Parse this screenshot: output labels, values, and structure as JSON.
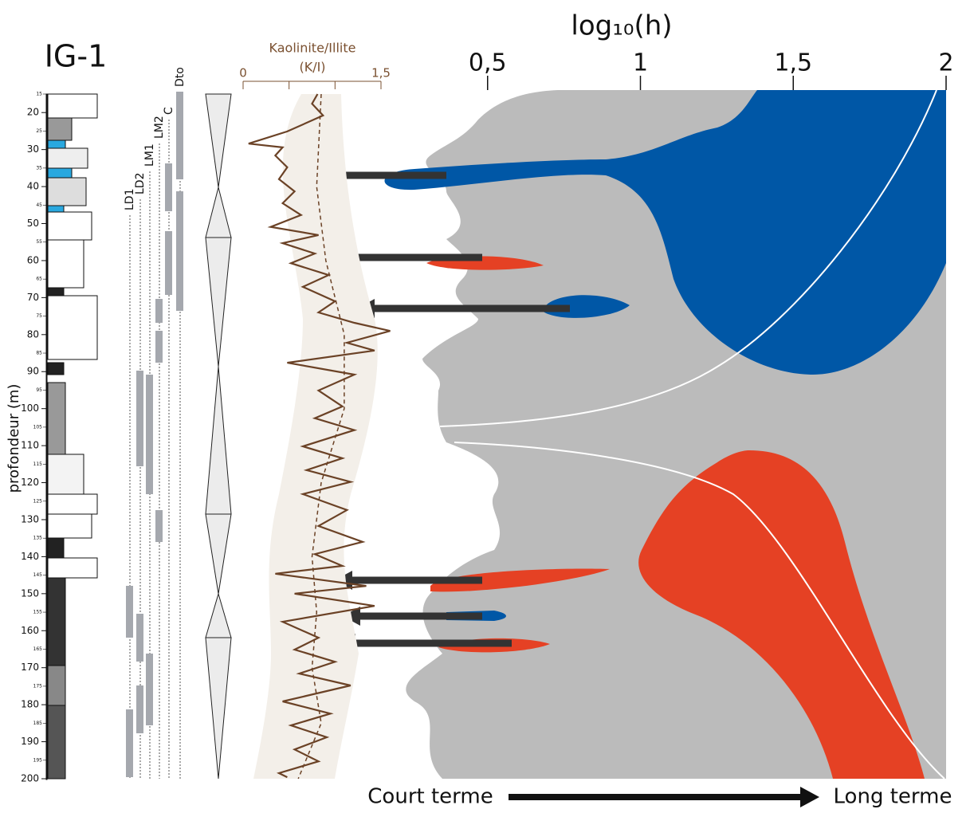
{
  "title": "IG-1",
  "chart_data": [
    {
      "type": "line",
      "title": "Kaolinite/Illite",
      "subtitle": "(K/I)",
      "y_label": "profondeur (m)",
      "ylim": [
        15,
        200
      ],
      "yticks": [
        20,
        30,
        40,
        50,
        60,
        70,
        80,
        90,
        100,
        110,
        120,
        130,
        140,
        150,
        160,
        170,
        180,
        190,
        200
      ],
      "yticks_minor": [
        15,
        25,
        35,
        45,
        55,
        65,
        75,
        85,
        95,
        105,
        115,
        125,
        135,
        145,
        155,
        165,
        175,
        185,
        195
      ],
      "xlim": [
        0,
        1.5
      ],
      "xticks": [
        0,
        {
          "value": 1.5,
          "label": "1,5"
        }
      ],
      "xticks_unlabeled": [
        0.5,
        1
      ],
      "column_labels": [
        "LD1",
        "LD2",
        "LM1",
        "LM2",
        "C",
        "Dto"
      ],
      "series": [
        {
          "color": "#6b4226",
          "dashed": false,
          "y": [
            15,
            17.6,
            20.8,
            25.1,
            28.4,
            29.4,
            31.6,
            34.8,
            38.0,
            41.3,
            44.5,
            47.7,
            50.9,
            53.1,
            55.3,
            58.1,
            60.7,
            63.9,
            67.1,
            71.0,
            74.0,
            76.8,
            79.0,
            82.2,
            84.3,
            87.6,
            90.8,
            95.1,
            99.4,
            102.6,
            105.8,
            110.2,
            113.4,
            116.6,
            119.8,
            123.1,
            127.4,
            131.7,
            136.0,
            139.3,
            142.5,
            144.6,
            147.9,
            150.0,
            153.3,
            157.6,
            161.9,
            165.1,
            168.4,
            171.6,
            174.8,
            179.1,
            182.4,
            185.6,
            188.8,
            192.1,
            195.3,
            198.5,
            199.6
          ],
          "values": [
            0.81,
            0.75,
            0.87,
            0.48,
            0.06,
            0.43,
            0.35,
            0.48,
            0.39,
            0.56,
            0.43,
            0.63,
            0.3,
            0.82,
            0.43,
            0.78,
            0.52,
            0.93,
            0.65,
            1.0,
            0.82,
            1.21,
            1.6,
            1.13,
            1.43,
            0.48,
            1.21,
            0.82,
            1.08,
            0.78,
            1.21,
            0.65,
            1.08,
            0.69,
            1.17,
            0.65,
            1.13,
            0.82,
            1.3,
            0.78,
            1.08,
            0.35,
            1.34,
            0.56,
            1.43,
            0.43,
            0.82,
            0.56,
            1.0,
            0.61,
            1.17,
            0.43,
            0.95,
            0.52,
            0.91,
            0.56,
            0.82,
            0.39,
            0.48
          ]
        },
        {
          "color": "#6b4226",
          "dashed": true,
          "y": [
            15,
            40,
            60,
            80,
            100,
            120,
            140,
            155,
            170,
            185,
            200
          ],
          "values": [
            0.85,
            0.8,
            0.9,
            1.1,
            1.1,
            0.85,
            0.75,
            0.8,
            0.75,
            0.85,
            0.6
          ]
        }
      ]
    },
    {
      "type": "area",
      "title": "log₁₀(h)",
      "xlim": [
        0,
        2
      ],
      "xticks": [
        {
          "value": 0.5,
          "label": "0,5"
        },
        1,
        {
          "value": 1.5,
          "label": "1,5"
        },
        2
      ],
      "annotations": [
        "Court terme",
        "Long terme"
      ]
    }
  ]
}
